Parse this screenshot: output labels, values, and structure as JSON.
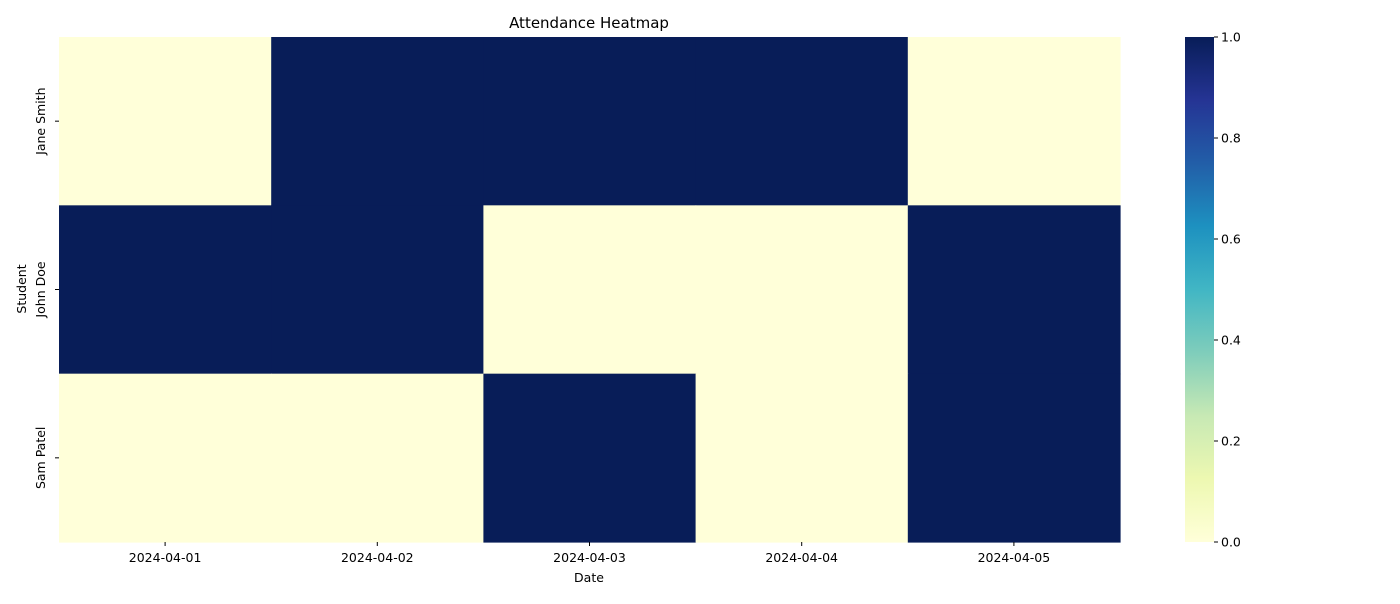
{
  "chart_data": {
    "type": "heatmap",
    "title": "Attendance Heatmap",
    "xlabel": "Date",
    "ylabel": "Student",
    "x_categories": [
      "2024-04-01",
      "2024-04-02",
      "2024-04-03",
      "2024-04-04",
      "2024-04-05"
    ],
    "y_categories": [
      "Jane Smith",
      "John Doe",
      "Sam Patel"
    ],
    "values": [
      [
        0,
        1,
        1,
        1,
        0
      ],
      [
        1,
        1,
        0,
        0,
        1
      ],
      [
        0,
        0,
        1,
        0,
        1
      ]
    ],
    "colorbar": {
      "range": [
        0,
        1
      ],
      "ticks": [
        "0.0",
        "0.2",
        "0.4",
        "0.6",
        "0.8",
        "1.0"
      ],
      "colormap": "YlGnBu",
      "low_color": "#ffffd9",
      "high_color": "#081d58"
    },
    "grid": false
  }
}
